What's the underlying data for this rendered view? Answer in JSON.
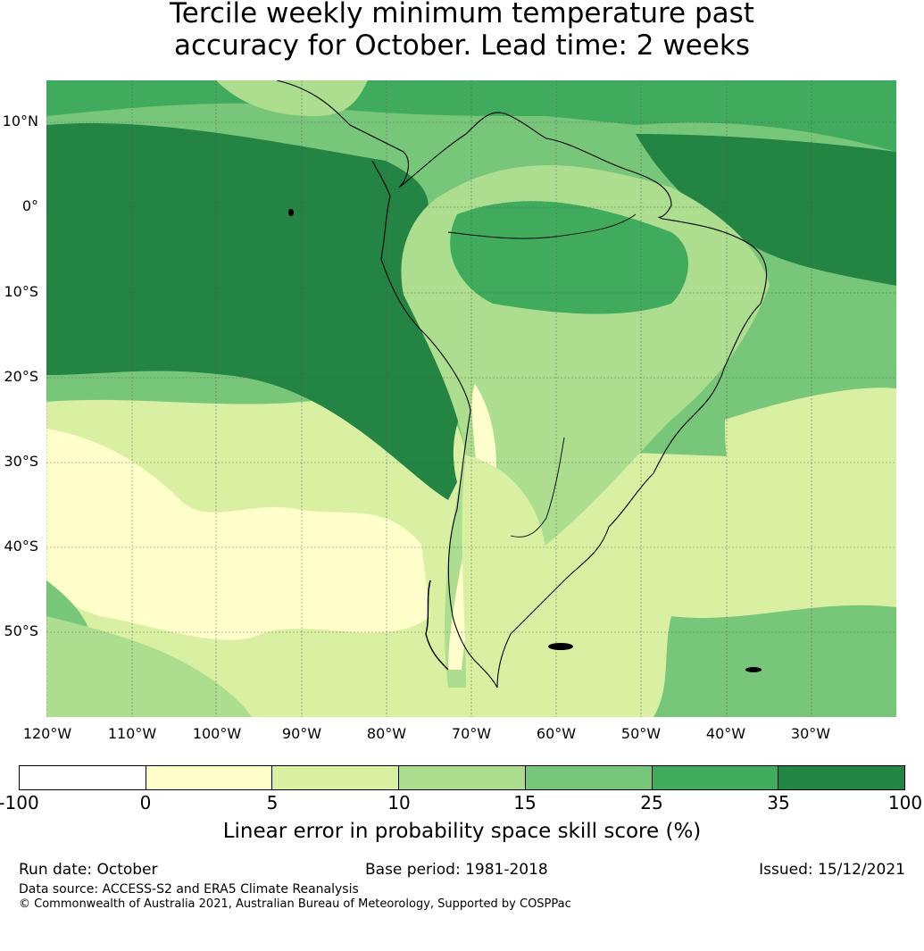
{
  "title_line1": "Tercile weekly minimum temperature past",
  "title_line2": "accuracy for October. Lead time: 2 weeks",
  "lat_labels": [
    "10°N",
    "0°",
    "10°S",
    "20°S",
    "30°S",
    "40°S",
    "50°S"
  ],
  "lon_labels": [
    "120°W",
    "110°W",
    "100°W",
    "90°W",
    "80°W",
    "70°W",
    "60°W",
    "50°W",
    "40°W",
    "30°W"
  ],
  "colorbar": {
    "ticks": [
      "-100",
      "0",
      "5",
      "10",
      "15",
      "25",
      "35",
      "100"
    ],
    "colors": [
      "#ffffff",
      "#ffffcc",
      "#d9f0a3",
      "#addd8e",
      "#78c679",
      "#41ab5d",
      "#238443"
    ],
    "label": "Linear error in probability space skill score (%)"
  },
  "footer": {
    "run_date": "Run date: October",
    "base_period": "Base period: 1981-2018",
    "issued": "Issued: 15/12/2021",
    "data_source": "Data source: ACCESS-S2 and ERA5 Climate Reanalysis",
    "copyright": "© Commonwealth of Australia 2021, Australian Bureau of Meteorology, Supported by COSPPac"
  }
}
